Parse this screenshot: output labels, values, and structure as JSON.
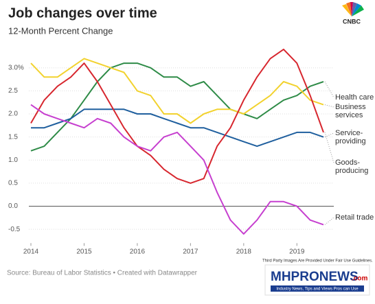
{
  "chart_data": {
    "type": "line",
    "title": "Job changes over time",
    "subtitle": "12-Month Percent Change",
    "source": "Source: Bureau of Labor Statistics • Created with Datawrapper",
    "logo": "CNBC",
    "watermark_note": "Third Party Images Are Provided Under Fair Use Guidelines.",
    "watermark_logo": "MHPRONEWS",
    "watermark_domain": ".com",
    "watermark_tagline": "Industry News, Tips and Views Pros can Use",
    "x": [
      2014,
      2014.25,
      2014.5,
      2014.75,
      2015,
      2015.25,
      2015.5,
      2015.75,
      2016,
      2016.25,
      2016.5,
      2016.75,
      2017,
      2017.25,
      2017.5,
      2017.75,
      2018,
      2018.25,
      2018.5,
      2018.75,
      2019,
      2019.25,
      2019.5
    ],
    "xlim": [
      2014,
      2019.5
    ],
    "xticks": [
      2014,
      2015,
      2016,
      2017,
      2018,
      2019
    ],
    "ylim": [
      -0.8,
      3.5
    ],
    "yticks": [
      {
        "value": 3,
        "label": "3.0%"
      },
      2.5,
      {
        "value": 2,
        "label": "2.0"
      },
      1.5,
      {
        "value": 1,
        "label": "1.0"
      },
      0.5,
      {
        "value": 0,
        "label": "0.0"
      },
      -0.5
    ],
    "grid": true,
    "series": [
      {
        "name": "Health care",
        "color": "#2e8b47",
        "values": [
          1.2,
          1.3,
          1.6,
          1.9,
          2.3,
          2.7,
          3.0,
          3.1,
          3.1,
          3.0,
          2.8,
          2.8,
          2.6,
          2.7,
          2.4,
          2.1,
          2.0,
          1.9,
          2.1,
          2.3,
          2.4,
          2.6,
          2.7
        ]
      },
      {
        "name": "Business services",
        "color": "#f2d22e",
        "values": [
          3.1,
          2.8,
          2.8,
          3.0,
          3.2,
          3.1,
          3.0,
          2.9,
          2.5,
          2.4,
          2.0,
          2.0,
          1.8,
          2.0,
          2.1,
          2.1,
          2.0,
          2.2,
          2.4,
          2.7,
          2.6,
          2.3,
          2.2
        ]
      },
      {
        "name": "Service-providing",
        "color": "#1f5f9e",
        "values": [
          1.7,
          1.7,
          1.8,
          1.9,
          2.1,
          2.1,
          2.1,
          2.1,
          2.0,
          2.0,
          1.9,
          1.8,
          1.7,
          1.7,
          1.6,
          1.5,
          1.4,
          1.3,
          1.4,
          1.5,
          1.6,
          1.6,
          1.5
        ]
      },
      {
        "name": "Goods-producing",
        "color": "#d7262e",
        "values": [
          1.8,
          2.3,
          2.6,
          2.8,
          3.1,
          2.7,
          2.2,
          1.7,
          1.3,
          1.1,
          0.8,
          0.6,
          0.5,
          0.6,
          1.3,
          1.7,
          2.3,
          2.8,
          3.2,
          3.4,
          3.1,
          2.4,
          1.6
        ]
      },
      {
        "name": "Retail trade",
        "color": "#c63fcf",
        "values": [
          2.2,
          2.0,
          1.9,
          1.8,
          1.7,
          1.9,
          1.8,
          1.5,
          1.3,
          1.2,
          1.5,
          1.6,
          1.3,
          1.0,
          0.3,
          -0.3,
          -0.6,
          -0.3,
          0.1,
          0.1,
          0.0,
          -0.3,
          -0.4
        ]
      }
    ]
  }
}
